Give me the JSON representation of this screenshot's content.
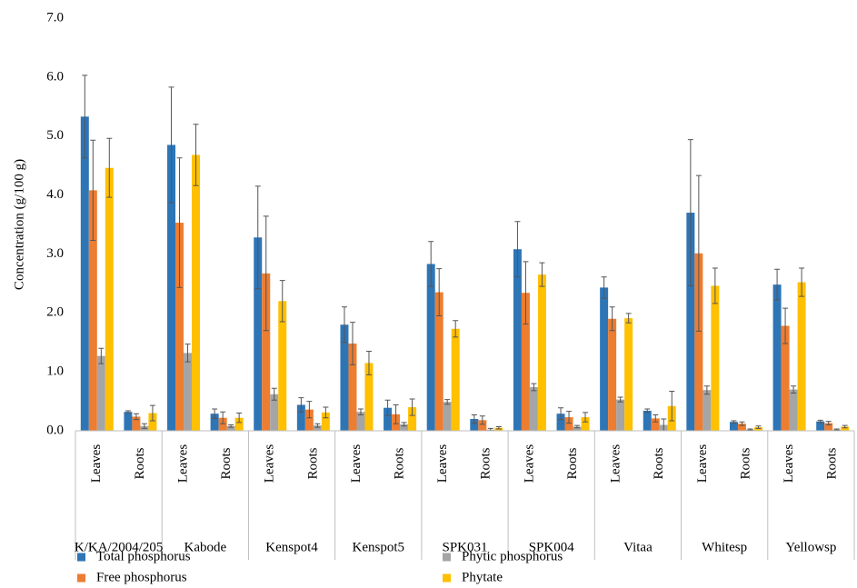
{
  "chart_data": {
    "type": "bar",
    "y_label": "Concentration (g/100 g)",
    "ylim": [
      0,
      7
    ],
    "yticks": [
      {
        "value": 0,
        "label": "0.0"
      },
      {
        "value": 1,
        "label": "1.0"
      },
      {
        "value": 2,
        "label": "2.0"
      },
      {
        "value": 3,
        "label": "3.0"
      },
      {
        "value": 4,
        "label": "4.0"
      },
      {
        "value": 5,
        "label": "5.0"
      },
      {
        "value": 6,
        "label": "6.0"
      },
      {
        "value": 7,
        "label": "7.0"
      }
    ],
    "groups": [
      "K/KA/2004/205",
      "Kabode",
      "Kenspot4",
      "Kenspot5",
      "SPK031",
      "SPK004",
      "Vitaa",
      "Whitesp",
      "Yellowsp"
    ],
    "categories": [
      "Leaves",
      "Roots",
      "Leaves",
      "Roots",
      "Leaves",
      "Roots",
      "Leaves",
      "Roots",
      "Leaves",
      "Roots",
      "Leaves",
      "Roots",
      "Leaves",
      "Roots",
      "Leaves",
      "Roots",
      "Leaves",
      "Roots"
    ],
    "series": [
      {
        "name": "Total phosphorus",
        "color": "#2e75b6",
        "values": [
          5.33,
          0.32,
          4.85,
          0.29,
          3.28,
          0.44,
          1.8,
          0.39,
          2.83,
          0.2,
          3.08,
          0.29,
          2.43,
          0.34,
          3.7,
          0.15,
          2.48,
          0.16
        ],
        "errors": [
          0.7,
          0.02,
          0.98,
          0.08,
          0.87,
          0.12,
          0.3,
          0.13,
          0.38,
          0.07,
          0.47,
          0.1,
          0.18,
          0.03,
          1.24,
          0.02,
          0.26,
          0.02
        ]
      },
      {
        "name": "Free phosphorus",
        "color": "#ed7d31",
        "values": [
          4.08,
          0.24,
          3.53,
          0.22,
          2.67,
          0.36,
          1.48,
          0.28,
          2.35,
          0.18,
          2.34,
          0.23,
          1.9,
          0.21,
          3.01,
          0.12,
          1.78,
          0.13
        ],
        "errors": [
          0.85,
          0.05,
          1.1,
          0.1,
          0.97,
          0.14,
          0.36,
          0.16,
          0.4,
          0.07,
          0.53,
          0.1,
          0.2,
          0.06,
          1.32,
          0.03,
          0.3,
          0.03
        ]
      },
      {
        "name": "Phytic phosphorus",
        "color": "#a5a5a5",
        "values": [
          1.27,
          0.08,
          1.32,
          0.08,
          0.62,
          0.09,
          0.32,
          0.11,
          0.49,
          0.02,
          0.74,
          0.07,
          0.53,
          0.1,
          0.69,
          0.02,
          0.7,
          0.02
        ],
        "errors": [
          0.13,
          0.04,
          0.15,
          0.02,
          0.1,
          0.03,
          0.05,
          0.03,
          0.04,
          0.02,
          0.06,
          0.02,
          0.04,
          0.1,
          0.07,
          0.01,
          0.06,
          0.01
        ]
      },
      {
        "name": "Phytate",
        "color": "#ffc000",
        "values": [
          4.46,
          0.3,
          4.68,
          0.22,
          2.2,
          0.31,
          1.15,
          0.4,
          1.73,
          0.05,
          2.65,
          0.23,
          1.91,
          0.42,
          2.46,
          0.06,
          2.52,
          0.07
        ],
        "errors": [
          0.5,
          0.13,
          0.52,
          0.08,
          0.35,
          0.09,
          0.2,
          0.14,
          0.14,
          0.02,
          0.2,
          0.08,
          0.08,
          0.25,
          0.3,
          0.02,
          0.24,
          0.02
        ]
      }
    ]
  }
}
